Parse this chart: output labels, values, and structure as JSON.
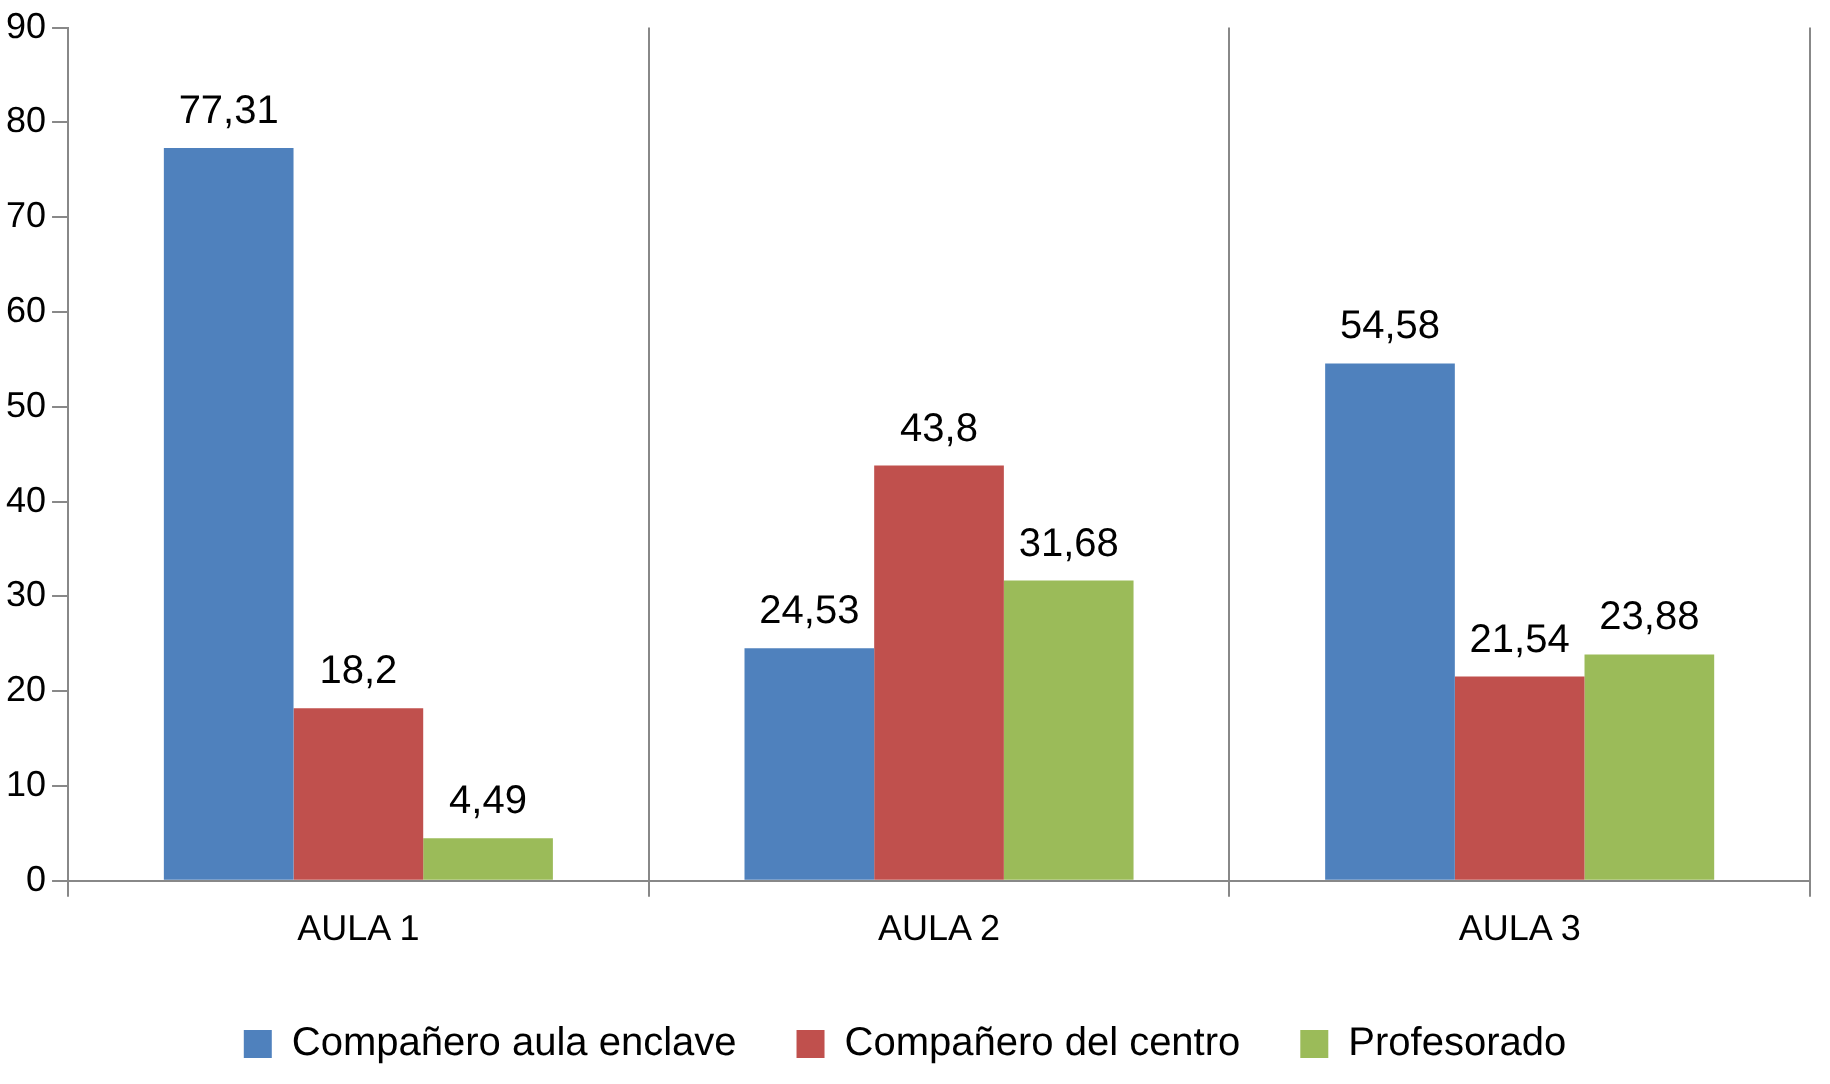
{
  "chart_data": {
    "type": "bar",
    "categories": [
      "AULA 1",
      "AULA 2",
      "AULA 3"
    ],
    "series": [
      {
        "name": "Compañero aula enclave",
        "color": "#4f81bd",
        "values": [
          77.31,
          24.53,
          54.58
        ],
        "value_labels": [
          "77,31",
          "24,53",
          "54,58"
        ]
      },
      {
        "name": "Compañero del centro",
        "color": "#c0504d",
        "values": [
          18.2,
          43.8,
          21.54
        ],
        "value_labels": [
          "18,2",
          "43,8",
          "21,54"
        ]
      },
      {
        "name": "Profesorado",
        "color": "#9bbb59",
        "values": [
          4.49,
          31.68,
          23.88
        ],
        "value_labels": [
          "4,49",
          "31,68",
          "23,88"
        ]
      }
    ],
    "ylim": [
      0,
      90
    ],
    "yticks": [
      0,
      10,
      20,
      30,
      40,
      50,
      60,
      70,
      80,
      90
    ],
    "grid": "x",
    "legend": "bottom"
  }
}
